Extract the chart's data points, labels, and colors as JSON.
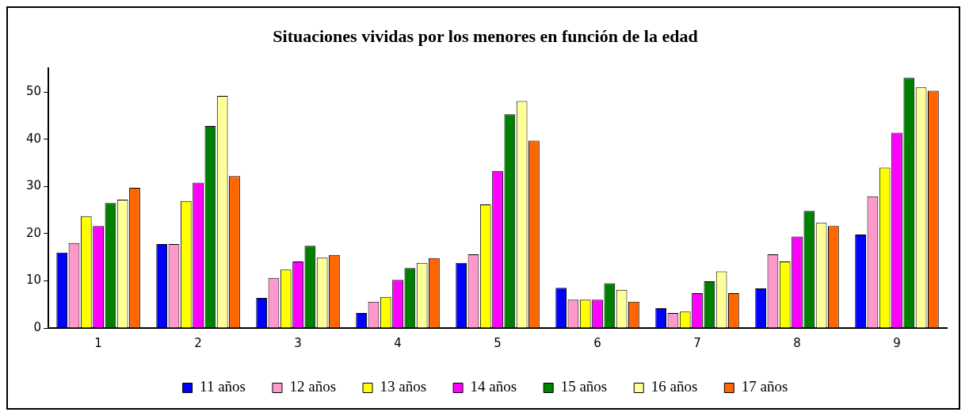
{
  "chart_data": {
    "type": "bar",
    "title": "Situaciones vividas por los menores en función de la edad",
    "categories": [
      "1",
      "2",
      "3",
      "4",
      "5",
      "6",
      "7",
      "8",
      "9"
    ],
    "series": [
      {
        "name": "11 años",
        "color": "#0000ff",
        "values": [
          16,
          17.8,
          6.4,
          3.2,
          13.8,
          8.5,
          4.2,
          8.4,
          19.8
        ]
      },
      {
        "name": "12 años",
        "color": "#ff99cc",
        "values": [
          18,
          17.8,
          10.6,
          5.6,
          15.6,
          6.0,
          3.2,
          15.6,
          27.9
        ]
      },
      {
        "name": "13 años",
        "color": "#ffff00",
        "values": [
          23.7,
          26.9,
          12.4,
          6.6,
          26.2,
          6.0,
          3.5,
          14.1,
          34.0
        ]
      },
      {
        "name": "14 años",
        "color": "#ff00ff",
        "values": [
          21.6,
          30.8,
          14.1,
          10.2,
          33.3,
          6.0,
          7.4,
          19.4,
          41.4
        ]
      },
      {
        "name": "15 años",
        "color": "#008000",
        "values": [
          26.5,
          42.8,
          17.4,
          12.7,
          45.3,
          9.5,
          9.9,
          24.8,
          53.0
        ]
      },
      {
        "name": "16 años",
        "color": "#ffff99",
        "values": [
          27.2,
          49.2,
          14.9,
          13.8,
          48.1,
          8.1,
          12.0,
          22.3,
          51.0
        ]
      },
      {
        "name": "17 años",
        "color": "#ff6600",
        "values": [
          29.7,
          32.2,
          15.5,
          14.8,
          39.7,
          5.6,
          7.4,
          21.6,
          50.3
        ]
      }
    ],
    "ylim": [
      0,
      55
    ],
    "yticks": [
      0,
      10,
      20,
      30,
      40,
      50
    ],
    "grid": false,
    "legend": "bottom"
  }
}
